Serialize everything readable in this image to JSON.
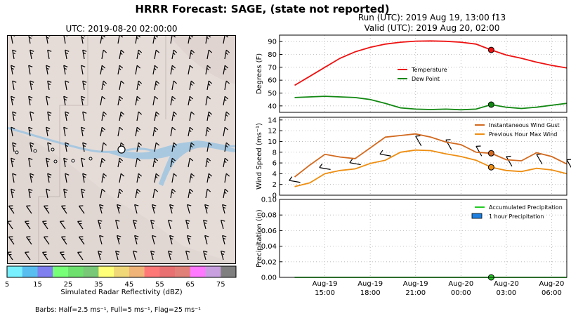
{
  "header": {
    "title": "HRRR Forecast: SAGE, (state not reported)",
    "run": "Run (UTC): 2019 Aug 19, 13:00 f13",
    "valid": "Valid (UTC): 2019 Aug 20, 02:00"
  },
  "map": {
    "title": "UTC: 2019-08-20 02:00:00",
    "colorbar_label": "Simulated Radar Reflectivity (dBZ)",
    "colorbar_ticks": [
      "5",
      "15",
      "25",
      "35",
      "45",
      "55",
      "65",
      "75"
    ],
    "colorbar_colors": [
      "#78f0ff",
      "#58bef0",
      "#7f7ff0",
      "#78ff78",
      "#6ee06e",
      "#78c878",
      "#ffff78",
      "#f0d878",
      "#f0b478",
      "#ff7878",
      "#e87070",
      "#e08078",
      "#ff78ff",
      "#c8a0e0",
      "#7f7f7f"
    ],
    "barbs_text": "Barbs: Half=2.5 ms⁻¹, Full=5 ms⁻¹, Flag=25 ms⁻¹",
    "colors": {
      "land": "#e5dcd8",
      "water": "#a8c8e0"
    }
  },
  "chart_data": [
    {
      "type": "line",
      "x": [
        "2019-08-19 13:00",
        "2019-08-19 14:00",
        "2019-08-19 15:00",
        "2019-08-19 16:00",
        "2019-08-19 17:00",
        "2019-08-19 18:00",
        "2019-08-19 19:00",
        "2019-08-19 20:00",
        "2019-08-19 21:00",
        "2019-08-19 22:00",
        "2019-08-19 23:00",
        "2019-08-20 00:00",
        "2019-08-20 01:00",
        "2019-08-20 02:00",
        "2019-08-20 03:00",
        "2019-08-20 04:00",
        "2019-08-20 05:00",
        "2019-08-20 06:00",
        "2019-08-20 07:00"
      ],
      "series": [
        {
          "name": "Temperature",
          "color": "#ee1111",
          "values": [
            56,
            63,
            70,
            77,
            82,
            85.5,
            88,
            89.5,
            90.3,
            90.5,
            90.2,
            89.5,
            88,
            83.5,
            79.5,
            77,
            74,
            71.5,
            69.5
          ]
        },
        {
          "name": "Dew Point",
          "color": "#118811",
          "values": [
            46.5,
            47,
            47.5,
            47,
            46.5,
            45,
            42,
            38.5,
            37.5,
            37.2,
            37.5,
            37,
            37.5,
            41,
            39,
            38,
            39,
            40.5,
            42
          ]
        }
      ],
      "marker_x": "2019-08-20 02:00",
      "ylabel": "Degrees (F)",
      "yticks": [
        40,
        50,
        60,
        70,
        80,
        90
      ],
      "ylim": [
        35,
        95
      ],
      "legend": "center-right"
    },
    {
      "type": "line",
      "x": [
        "2019-08-19 13:00",
        "2019-08-19 14:00",
        "2019-08-19 15:00",
        "2019-08-19 16:00",
        "2019-08-19 17:00",
        "2019-08-19 18:00",
        "2019-08-19 19:00",
        "2019-08-19 20:00",
        "2019-08-19 21:00",
        "2019-08-19 22:00",
        "2019-08-19 23:00",
        "2019-08-20 00:00",
        "2019-08-20 01:00",
        "2019-08-20 02:00",
        "2019-08-20 03:00",
        "2019-08-20 04:00",
        "2019-08-20 05:00",
        "2019-08-20 06:00",
        "2019-08-20 07:00"
      ],
      "series": [
        {
          "name": "Instantaneous Wind Gust",
          "color": "#d2691e",
          "values": [
            3.4,
            5.6,
            7.6,
            7.1,
            6.8,
            8.8,
            10.8,
            11.1,
            11.4,
            10.8,
            9.9,
            9.4,
            8.0,
            7.8,
            6.6,
            6.4,
            7.9,
            7.2,
            5.8
          ]
        },
        {
          "name": "Previous Hour Max Wind",
          "color": "#ee8e11",
          "values": [
            1.6,
            2.3,
            4.0,
            4.6,
            4.9,
            5.9,
            6.5,
            8.0,
            8.4,
            8.3,
            7.7,
            7.2,
            6.5,
            5.2,
            4.6,
            4.4,
            5.0,
            4.7,
            4.0
          ]
        }
      ],
      "marker_x": "2019-08-20 02:00",
      "ylabel": "Wind Speed (ms⁻¹)",
      "yticks": [
        0,
        2,
        4,
        6,
        8,
        10,
        12,
        14
      ],
      "ylim": [
        0,
        14.5
      ],
      "legend": "top-right"
    },
    {
      "type": "line",
      "x": [
        "2019-08-19 13:00",
        "2019-08-20 07:00"
      ],
      "series": [
        {
          "name": "Accumulated Precipitation",
          "color": "#22cc22",
          "values": [
            0,
            0
          ]
        }
      ],
      "bar_legend": {
        "name": "1 hour Precipitation",
        "color": "#1e7fe0"
      },
      "marker_x": "2019-08-20 02:00",
      "ylabel": "Precipitation (in)",
      "yticks": [
        "0.00",
        "0.02",
        "0.04",
        "0.06",
        "0.08",
        "0.10"
      ],
      "ylim": [
        0,
        0.1
      ],
      "legend": "top-right"
    }
  ],
  "time_axis": {
    "ticks": [
      {
        "x": "2019-08-19 15:00",
        "label1": "Aug-19",
        "label2": "15:00"
      },
      {
        "x": "2019-08-19 18:00",
        "label1": "Aug-19",
        "label2": "18:00"
      },
      {
        "x": "2019-08-19 21:00",
        "label1": "Aug-19",
        "label2": "21:00"
      },
      {
        "x": "2019-08-20 00:00",
        "label1": "Aug-20",
        "label2": "00:00"
      },
      {
        "x": "2019-08-20 03:00",
        "label1": "Aug-20",
        "label2": "03:00"
      },
      {
        "x": "2019-08-20 06:00",
        "label1": "Aug-20",
        "label2": "06:00"
      }
    ]
  }
}
